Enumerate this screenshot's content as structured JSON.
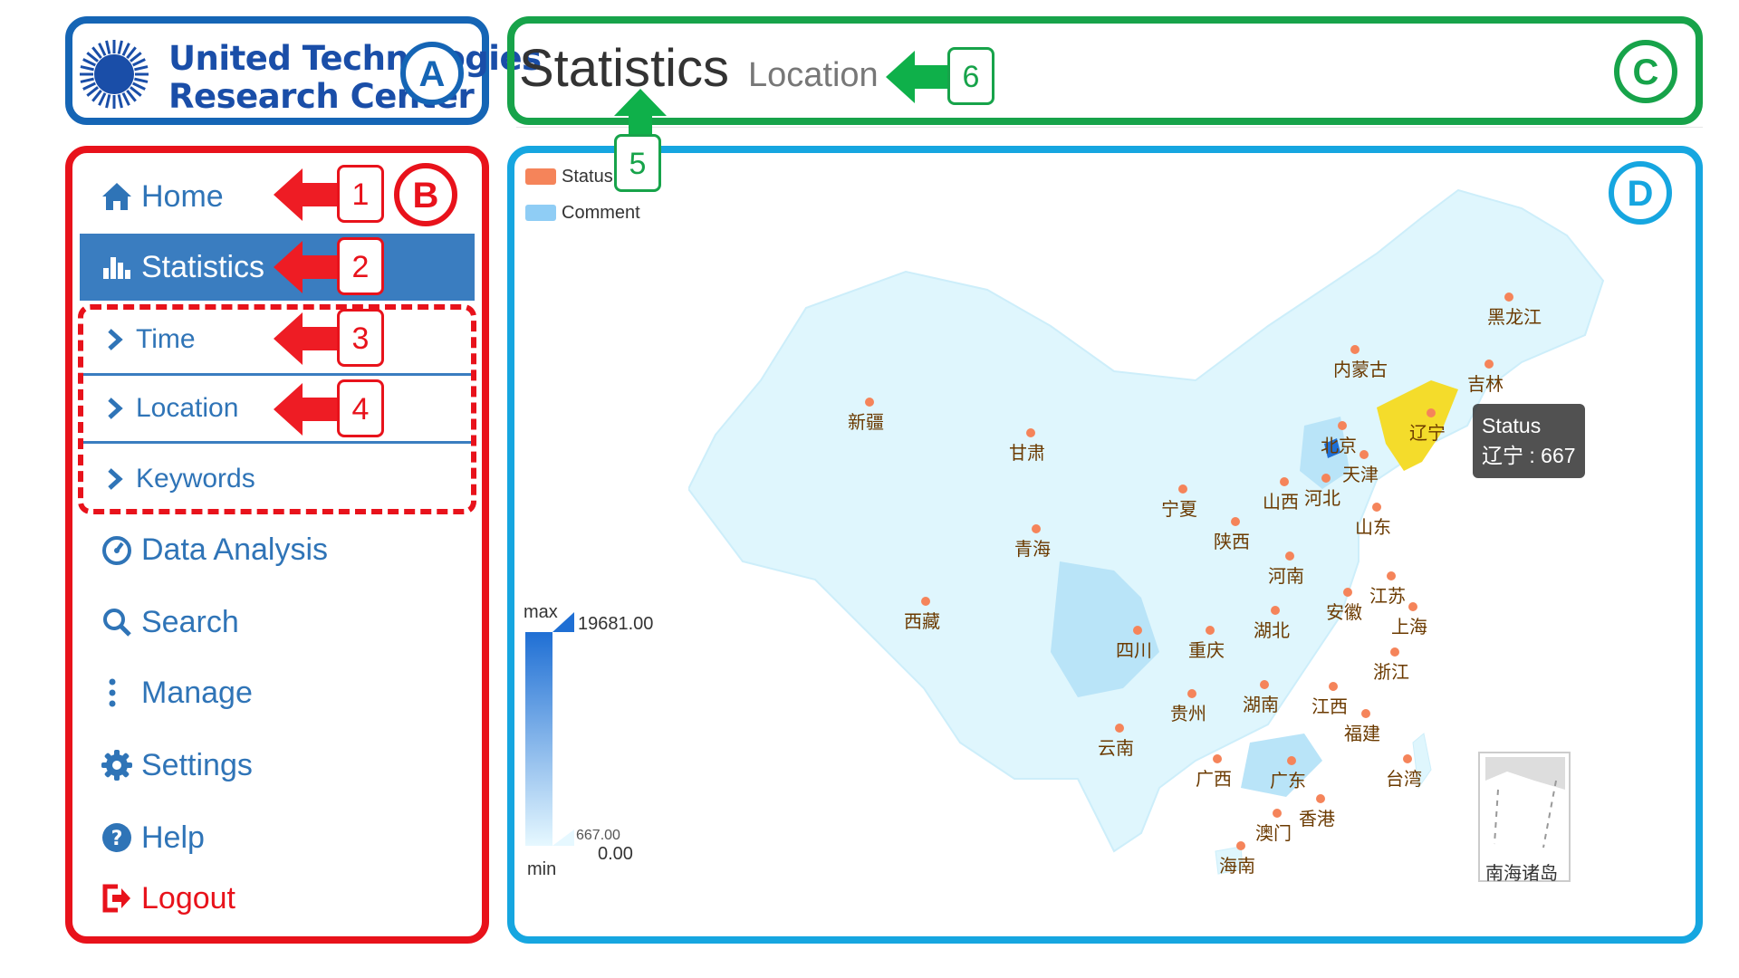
{
  "annotations": {
    "regions": [
      "A",
      "B",
      "C",
      "D"
    ],
    "callouts": [
      "1",
      "2",
      "3",
      "4",
      "5",
      "6"
    ]
  },
  "logo": {
    "line1": "United Technologies",
    "line2": "Research Center"
  },
  "header": {
    "title": "Statistics",
    "subtitle": "Location"
  },
  "sidebar": {
    "items": [
      {
        "label": "Home",
        "icon": "home-icon"
      },
      {
        "label": "Statistics",
        "icon": "bar-chart-icon"
      },
      {
        "label": "Data Analysis",
        "icon": "dashboard-icon"
      },
      {
        "label": "Search",
        "icon": "search-icon"
      },
      {
        "label": "Manage",
        "icon": "vertical-dots-icon"
      },
      {
        "label": "Settings",
        "icon": "gear-icon"
      },
      {
        "label": "Help",
        "icon": "question-icon"
      },
      {
        "label": "Logout",
        "icon": "logout-icon"
      }
    ],
    "subitems": [
      {
        "label": "Time"
      },
      {
        "label": "Location"
      },
      {
        "label": "Keywords"
      }
    ],
    "active_item": "Statistics",
    "active_subitem": "Location"
  },
  "map": {
    "legend": [
      {
        "label": "Status",
        "color": "#f5845a"
      },
      {
        "label": "Comment",
        "color": "#8fcdf5"
      }
    ],
    "visual_map": {
      "max_text": "max",
      "min_text": "min",
      "max_value": "19681.00",
      "handle_value": "667.00",
      "min_value": "0.00",
      "color_high": "#1f6fd4",
      "color_low": "#e6f8ff"
    },
    "provinces": [
      "黑龙江",
      "吉林",
      "内蒙古",
      "辽宁",
      "北京",
      "天津",
      "河北",
      "山西",
      "山东",
      "新疆",
      "甘肃",
      "宁夏",
      "青海",
      "陕西",
      "河南",
      "江苏",
      "安徽",
      "上海",
      "西藏",
      "四川",
      "重庆",
      "湖北",
      "浙江",
      "贵州",
      "湖南",
      "江西",
      "福建",
      "云南",
      "广西",
      "广东",
      "台湾",
      "香港",
      "澳门",
      "海南"
    ],
    "highlight": {
      "province": "辽宁",
      "color": "#f4dc2b"
    },
    "tooltip": {
      "series": "Status",
      "text": "辽宁 : 667"
    },
    "inset_label": "南海诸岛"
  }
}
